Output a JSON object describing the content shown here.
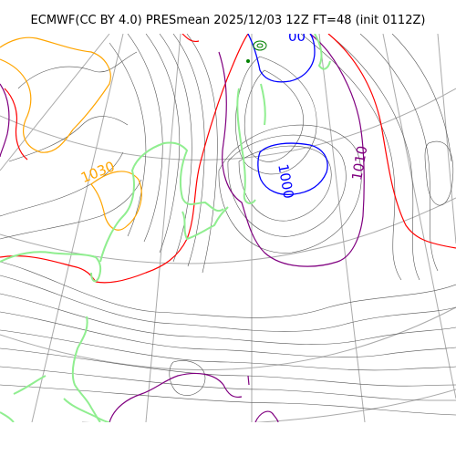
{
  "title": "ECMWF(CC BY 4.0) PRESmean 2025/12/03 12Z FT=48 (init 0112Z)",
  "labels": {
    "high_1030": "1030",
    "low_1000": "1000",
    "isobar_1010": "1010",
    "top_partial": "00"
  },
  "colors": {
    "thin_isobar": "#555555",
    "isobar_1000": "#0000ff",
    "isobar_1010": "#800080",
    "isobar_1020": "#ff0000",
    "isobar_1030": "#ffa500",
    "coastline": "#90ee90",
    "graticule": "#aaaaaa",
    "low_marker": "#008000"
  }
}
